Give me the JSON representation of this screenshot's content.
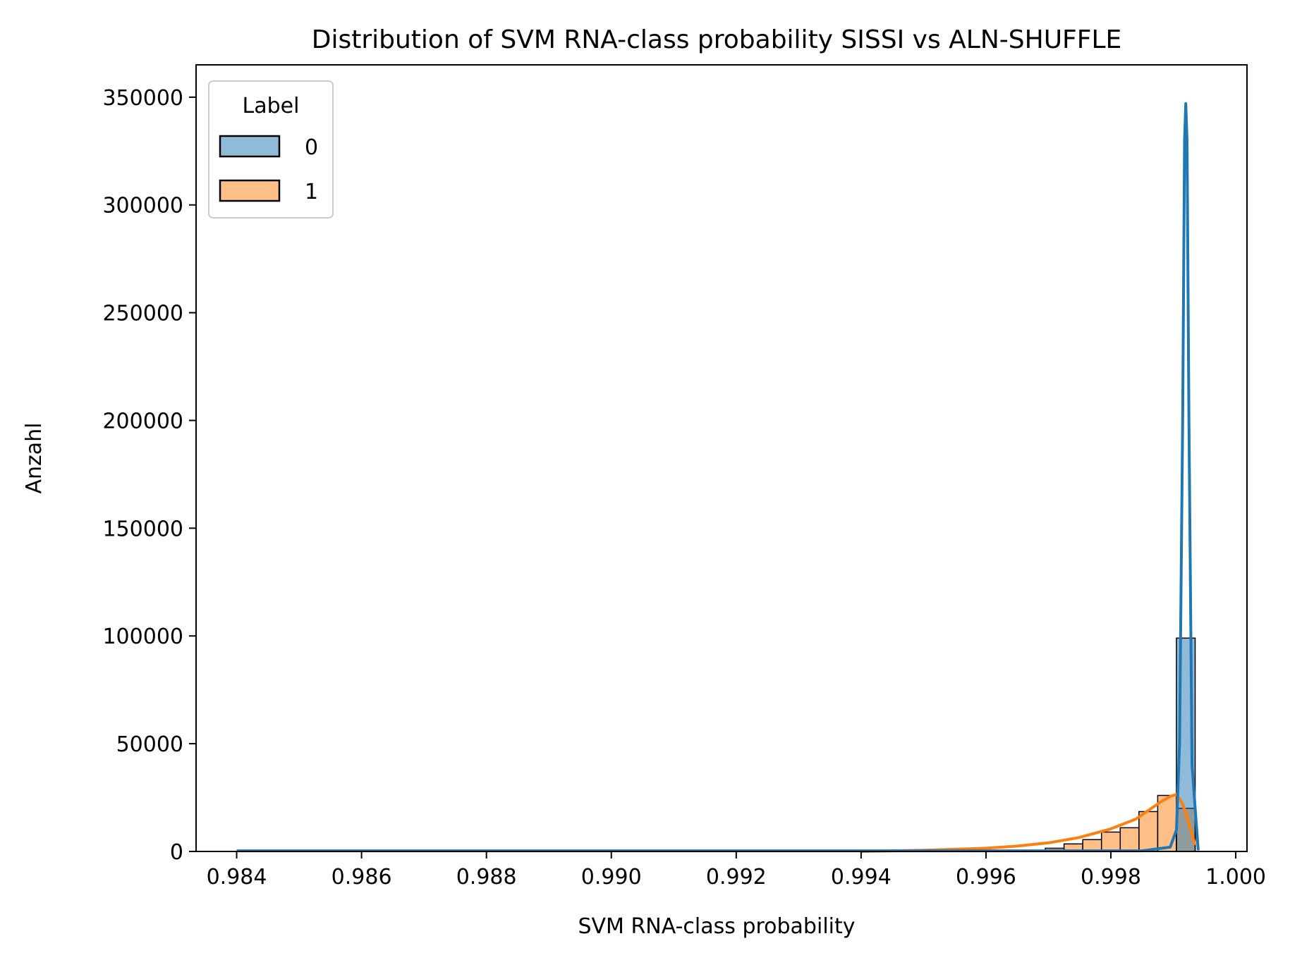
{
  "chart_data": {
    "type": "histogram",
    "title": "Distribution of SVM RNA-class probability SISSI vs ALN-SHUFFLE",
    "xlabel": "SVM RNA-class probability",
    "ylabel": "Anzahl",
    "xlim": [
      0.98335,
      1.00018
    ],
    "ylim": [
      0,
      365000
    ],
    "xticks": [
      "0.984",
      "0.986",
      "0.988",
      "0.990",
      "0.992",
      "0.994",
      "0.996",
      "0.998",
      "1.000"
    ],
    "xtick_values": [
      0.984,
      0.986,
      0.988,
      0.99,
      0.992,
      0.994,
      0.996,
      0.998,
      1.0
    ],
    "yticks": [
      "0",
      "50000",
      "100000",
      "150000",
      "200000",
      "250000",
      "300000",
      "350000"
    ],
    "ytick_values": [
      0,
      50000,
      100000,
      150000,
      200000,
      250000,
      300000,
      350000
    ],
    "bin_width": 0.0003,
    "bin_edges_start": 0.99695,
    "legend": {
      "title": "Label",
      "position": "upper-left",
      "entries": [
        "0",
        "1"
      ]
    },
    "colors": {
      "label0_fill": "#1f77b4",
      "label1_fill": "#ff7f0e",
      "label0_kde": "#1f77b4",
      "label1_kde": "#ff7f0e",
      "edge": "#000000"
    },
    "series": [
      {
        "name": "0",
        "bins_left": [
          0.99905
        ],
        "counts": [
          99000
        ],
        "kde_x": [
          0.984,
          0.99,
          0.9985,
          0.99895,
          0.99905,
          0.9991,
          0.99915,
          0.99918,
          0.9992,
          0.99922,
          0.99925,
          0.9993,
          0.9994
        ],
        "kde_y": [
          300,
          300,
          300,
          2000,
          10000,
          50000,
          200000,
          330000,
          347000,
          330000,
          200000,
          40000,
          500
        ]
      },
      {
        "name": "1",
        "bins_left": [
          0.99695,
          0.99725,
          0.99755,
          0.99785,
          0.99815,
          0.99845,
          0.99875,
          0.99905
        ],
        "counts": [
          1500,
          3500,
          5500,
          9000,
          11000,
          18500,
          26000,
          20000
        ],
        "kde_x": [
          0.994,
          0.995,
          0.9955,
          0.996,
          0.9965,
          0.997,
          0.9975,
          0.998,
          0.9984,
          0.9986,
          0.9988,
          0.99895,
          0.99905,
          0.99915,
          0.99925,
          0.99935
        ],
        "kde_y": [
          0,
          600,
          1000,
          1500,
          2500,
          4000,
          6500,
          10500,
          15000,
          19000,
          23000,
          25500,
          26500,
          22000,
          13000,
          3000
        ]
      }
    ]
  }
}
